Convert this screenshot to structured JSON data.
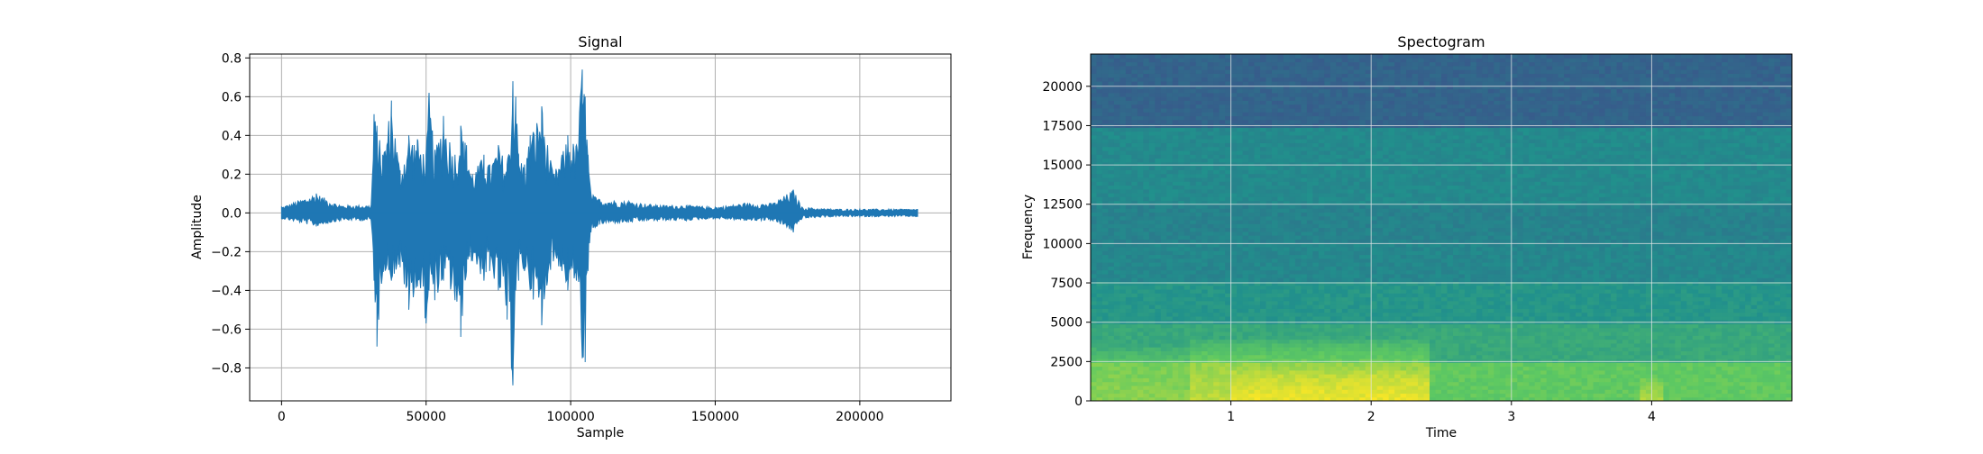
{
  "chart_data": [
    {
      "type": "line",
      "title": "Signal",
      "xlabel": "Sample",
      "ylabel": "Amplitude",
      "xlim": [
        -11025,
        231525
      ],
      "ylim": [
        -0.97,
        0.82
      ],
      "xticks": [
        0,
        50000,
        100000,
        150000,
        200000
      ],
      "xtick_labels": [
        "0",
        "50000",
        "100000",
        "150000",
        "200000"
      ],
      "yticks": [
        -0.8,
        -0.6,
        -0.4,
        -0.2,
        0.0,
        0.2,
        0.4,
        0.6,
        0.8
      ],
      "ytick_labels": [
        "−0.8",
        "−0.6",
        "−0.4",
        "−0.2",
        "0.0",
        "0.2",
        "0.4",
        "0.6",
        "0.8"
      ],
      "grid": true,
      "color": "#1f77b4",
      "series": [
        {
          "x": [
            0,
            12000,
            20000,
            31000,
            32000,
            33000,
            35000,
            38000,
            41000,
            44000,
            47000,
            50000,
            51000,
            53000,
            56000,
            60000,
            62000,
            64000,
            66000,
            70000,
            72000,
            75000,
            78000,
            80000,
            81000,
            82000,
            84000,
            86000,
            90000,
            92000,
            94000,
            97000,
            99000,
            102000,
            104000,
            105000,
            106000,
            107000,
            110000,
            120000,
            130000,
            140000,
            150000,
            160000,
            170000,
            177000,
            180000,
            190000,
            200000,
            210000,
            220000
          ],
          "max": [
            0.03,
            0.1,
            0.04,
            0.04,
            0.51,
            0.45,
            0.3,
            0.58,
            0.22,
            0.4,
            0.38,
            0.3,
            0.62,
            0.32,
            0.5,
            0.3,
            0.45,
            0.35,
            0.2,
            0.3,
            0.25,
            0.35,
            0.25,
            0.68,
            0.6,
            0.3,
            0.25,
            0.4,
            0.55,
            0.35,
            0.2,
            0.3,
            0.4,
            0.35,
            0.74,
            0.6,
            0.3,
            0.1,
            0.07,
            0.06,
            0.04,
            0.04,
            0.03,
            0.05,
            0.05,
            0.12,
            0.03,
            0.02,
            0.02,
            0.02,
            0.02
          ],
          "min": [
            -0.03,
            -0.07,
            -0.04,
            -0.04,
            -0.35,
            -0.69,
            -0.3,
            -0.35,
            -0.28,
            -0.5,
            -0.38,
            -0.57,
            -0.4,
            -0.45,
            -0.35,
            -0.45,
            -0.64,
            -0.3,
            -0.25,
            -0.35,
            -0.3,
            -0.4,
            -0.55,
            -0.89,
            -0.4,
            -0.35,
            -0.3,
            -0.4,
            -0.58,
            -0.35,
            -0.25,
            -0.3,
            -0.4,
            -0.35,
            -0.75,
            -0.77,
            -0.3,
            -0.1,
            -0.06,
            -0.05,
            -0.04,
            -0.04,
            -0.03,
            -0.04,
            -0.04,
            -0.1,
            -0.03,
            -0.02,
            -0.02,
            -0.02,
            -0.02
          ]
        }
      ]
    },
    {
      "type": "heatmap",
      "title": "Spectogram",
      "xlabel": "Time",
      "ylabel": "Frequency",
      "xlim": [
        0,
        5.0
      ],
      "ylim": [
        0,
        22050
      ],
      "xticks": [
        1,
        2,
        3,
        4
      ],
      "xtick_labels": [
        "1",
        "2",
        "3",
        "4"
      ],
      "yticks": [
        0,
        2500,
        5000,
        7500,
        10000,
        12500,
        15000,
        17500,
        20000
      ],
      "ytick_labels": [
        "0",
        "2500",
        "5000",
        "7500",
        "10000",
        "12500",
        "15000",
        "17500",
        "20000"
      ],
      "grid": true,
      "colormap": "viridis",
      "colors": [
        "#440154",
        "#3b528b",
        "#21918c",
        "#5ec962",
        "#fde725"
      ],
      "bands": [
        {
          "freq": [
            17500,
            22050
          ],
          "level": 0.32
        },
        {
          "freq": [
            12500,
            17500
          ],
          "level": 0.47
        },
        {
          "freq": [
            10000,
            12500
          ],
          "level": 0.44
        },
        {
          "freq": [
            7500,
            10000
          ],
          "level": 0.46
        },
        {
          "freq": [
            5000,
            7500
          ],
          "level": 0.52
        },
        {
          "freq": [
            2500,
            5000
          ],
          "level": 0.6
        },
        {
          "freq": [
            0,
            2500
          ],
          "level": 0.75
        }
      ],
      "hot_spots": [
        {
          "time": [
            0.0,
            0.7
          ],
          "freq": [
            0,
            3500
          ],
          "level": 0.82
        },
        {
          "time": [
            0.7,
            2.4
          ],
          "freq": [
            0,
            4000
          ],
          "level": 0.9
        },
        {
          "time": [
            1.0,
            2.4
          ],
          "freq": [
            0,
            2000
          ],
          "level": 0.97
        },
        {
          "time": [
            3.9,
            4.1
          ],
          "freq": [
            0,
            1500
          ],
          "level": 0.88
        }
      ]
    }
  ]
}
